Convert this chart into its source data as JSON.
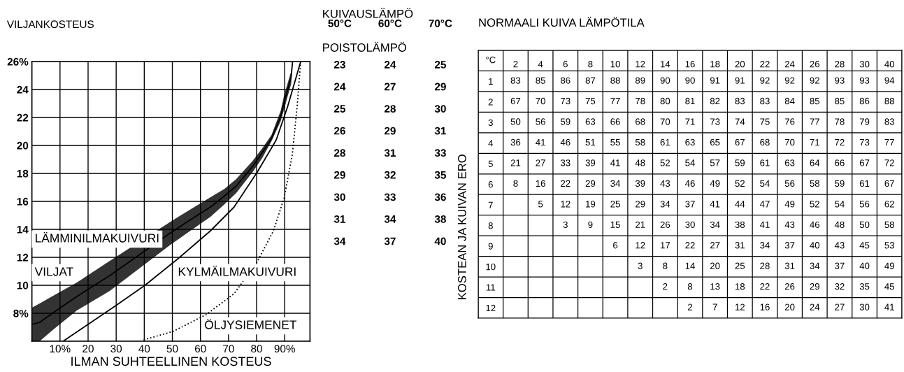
{
  "chart_data": [
    {
      "type": "line",
      "xlabel": "ILMAN SUHTEELLINEN KOSTEUS",
      "ylabel": "VILJANKOSTEUS",
      "xlim": [
        0,
        99
      ],
      "ylim": [
        6,
        26
      ],
      "xticks": [
        {
          "value": 10,
          "label": "10%"
        },
        20,
        30,
        40,
        50,
        60,
        70,
        80,
        {
          "value": 90,
          "label": "90%"
        }
      ],
      "yticks": [
        {
          "value": 6,
          "label": null
        },
        {
          "value": 8,
          "label": "8%"
        },
        10,
        12,
        14,
        16,
        18,
        20,
        22,
        24,
        {
          "value": 26,
          "label": "26%"
        }
      ],
      "grid": true,
      "series": [
        {
          "type": "line",
          "color": "#000000",
          "x": [
            0,
            2.75,
            8,
            16,
            27.75,
            49,
            55,
            63.6,
            68.6,
            72.75,
            78.6,
            82,
            85.3,
            88.6,
            89.8,
            92.3,
            92.8
          ],
          "values": [
            7.2,
            7.35,
            8.1,
            9.2,
            10.7,
            13.7,
            14.5,
            15.6,
            16.4,
            17.1,
            18.5,
            19.5,
            20.5,
            22.1,
            23.1,
            24.9,
            26
          ],
          "upper": [
            8.4,
            8.7,
            9.3,
            10.2,
            11.75,
            14.5,
            15.25,
            16.3,
            16.9,
            17.6,
            18.9,
            19.8,
            20.75,
            22.5,
            23.6,
            25.3,
            26
          ],
          "lower": [
            6,
            6,
            6.9,
            8.2,
            9.6,
            12.85,
            13.7,
            14.9,
            15.8,
            16.6,
            18.1,
            19.1,
            20.3,
            21.75,
            22.6,
            24.4,
            26
          ]
        },
        {
          "type": "line",
          "color": "#000000",
          "line_style": "solid",
          "x": [
            11.1,
            30.25,
            40.25,
            52,
            63.6,
            72,
            80.25,
            87,
            91,
            95.7
          ],
          "values": [
            6,
            8.6,
            10,
            11.9,
            13.9,
            15.6,
            18.1,
            20.4,
            22.75,
            26
          ]
        },
        {
          "type": "line",
          "color": "#000000",
          "line_style": "dotted",
          "x": [
            39.8,
            50.25,
            62,
            72,
            80.25,
            86,
            89.8,
            92.75,
            94.4,
            95.7
          ],
          "values": [
            6.1,
            6.7,
            7.9,
            9.4,
            11.7,
            13.9,
            16.25,
            19.4,
            22.75,
            26
          ]
        }
      ],
      "annotations": [
        "LÄMMINILMAKUIVURI",
        "VILJAT",
        "KYLMÄILMAKUIVURI",
        "ÖLJYSIEMENET"
      ]
    },
    {
      "type": "heatmap",
      "title": "KUIVAUSLÄMPÖ",
      "subtitle": "POISTOLÄMPÖ",
      "categories": [
        "50°C",
        "60°C",
        "70°C"
      ],
      "y_categories": [
        null,
        null,
        null,
        null,
        null,
        null,
        null,
        null,
        null
      ],
      "cells": [
        [
          23,
          24,
          25
        ],
        [
          24,
          27,
          29
        ],
        [
          25,
          28,
          30
        ],
        [
          26,
          29,
          31
        ],
        [
          28,
          31,
          33
        ],
        [
          29,
          32,
          35
        ],
        [
          30,
          33,
          36
        ],
        [
          31,
          34,
          38
        ],
        [
          34,
          37,
          40
        ]
      ],
      "data_labels": true
    },
    {
      "type": "heatmap",
      "title": "NORMAALI KUIVA LÄMPÖTILA",
      "ylabel": "KOSTEAN JA KUIVAN ERO",
      "annotations": [
        "°C"
      ],
      "grid": true,
      "data_labels": true,
      "categories": [
        "2",
        "4",
        "6",
        "8",
        "10",
        "12",
        "14",
        "16",
        "18",
        "20",
        "22",
        "24",
        "26",
        "28",
        "30",
        "40"
      ],
      "y_categories": [
        "1",
        "2",
        "3",
        "4",
        "5",
        "6",
        "7",
        "8",
        "9",
        "10",
        "11",
        "12"
      ],
      "cells": [
        [
          83,
          85,
          86,
          87,
          88,
          89,
          90,
          90,
          91,
          91,
          92,
          92,
          92,
          93,
          93,
          94
        ],
        [
          67,
          70,
          73,
          75,
          77,
          78,
          80,
          81,
          82,
          83,
          83,
          84,
          85,
          85,
          86,
          88
        ],
        [
          50,
          56,
          59,
          63,
          66,
          68,
          70,
          71,
          73,
          74,
          75,
          76,
          77,
          78,
          79,
          83
        ],
        [
          36,
          41,
          46,
          51,
          55,
          58,
          61,
          63,
          65,
          67,
          68,
          70,
          71,
          72,
          73,
          77
        ],
        [
          21,
          27,
          33,
          39,
          41,
          48,
          52,
          54,
          57,
          59,
          61,
          63,
          64,
          66,
          67,
          72
        ],
        [
          8,
          16,
          22,
          29,
          34,
          39,
          43,
          46,
          49,
          52,
          54,
          56,
          58,
          59,
          61,
          67
        ],
        [
          null,
          5,
          12,
          19,
          25,
          29,
          34,
          37,
          41,
          44,
          47,
          49,
          52,
          54,
          56,
          62
        ],
        [
          null,
          null,
          3,
          9,
          15,
          21,
          26,
          30,
          34,
          38,
          41,
          43,
          46,
          48,
          50,
          58
        ],
        [
          null,
          null,
          null,
          null,
          6,
          12,
          17,
          22,
          27,
          31,
          34,
          37,
          40,
          43,
          45,
          53
        ],
        [
          null,
          null,
          null,
          null,
          null,
          3,
          8,
          14,
          20,
          25,
          28,
          31,
          34,
          37,
          40,
          49
        ],
        [
          null,
          null,
          null,
          null,
          null,
          null,
          2,
          8,
          13,
          18,
          22,
          26,
          29,
          32,
          35,
          45
        ],
        [
          null,
          null,
          null,
          null,
          null,
          null,
          null,
          2,
          7,
          12,
          16,
          20,
          24,
          27,
          30,
          41
        ]
      ]
    }
  ]
}
